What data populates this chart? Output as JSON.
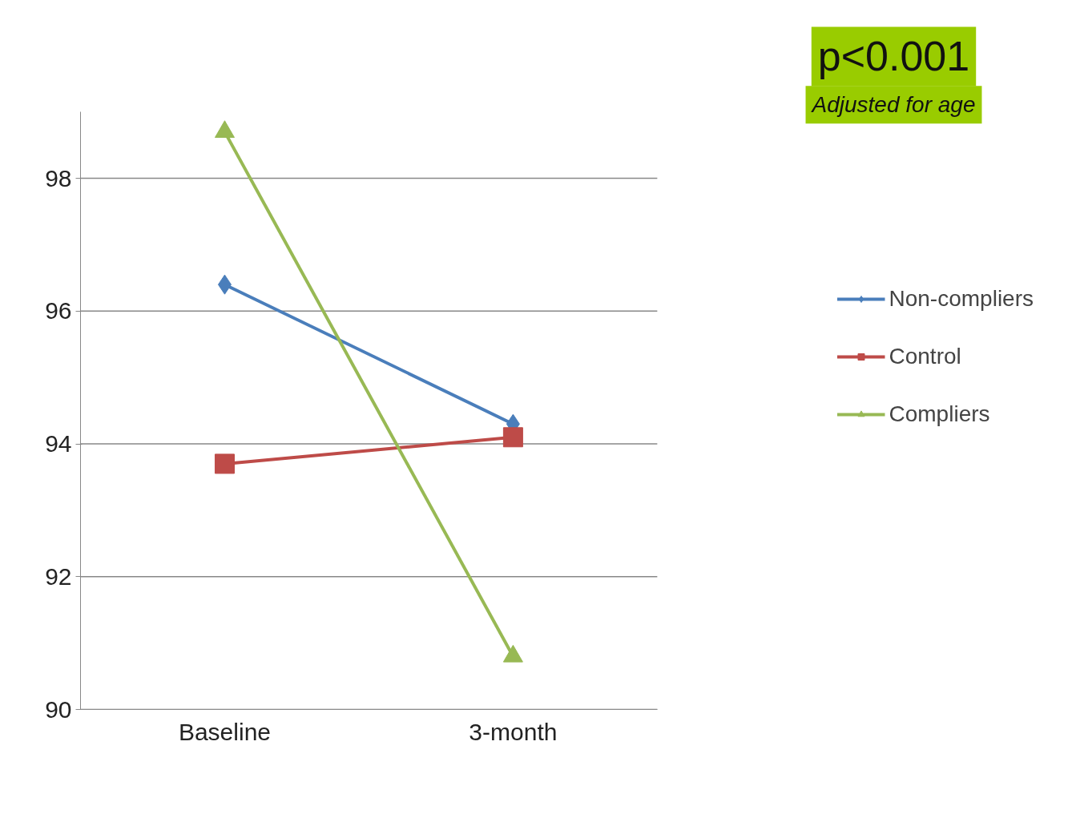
{
  "chart_data": {
    "type": "line",
    "categories": [
      "Baseline",
      "3-month"
    ],
    "series": [
      {
        "name": "Non-compliers",
        "color": "#4a7ebb",
        "marker": "diamond",
        "values": [
          96.4,
          94.3
        ]
      },
      {
        "name": "Control",
        "color": "#be4b48",
        "marker": "square",
        "values": [
          93.7,
          94.1
        ]
      },
      {
        "name": "Compliers",
        "color": "#98b954",
        "marker": "triangle",
        "values": [
          98.7,
          90.8
        ]
      }
    ],
    "ylim": [
      90,
      99
    ],
    "yticks": [
      90,
      92,
      94,
      96,
      98
    ],
    "grid": "y",
    "legend": "right",
    "line_style": "solid",
    "annotations": [
      "p<0.001",
      "Adjusted for age"
    ]
  }
}
